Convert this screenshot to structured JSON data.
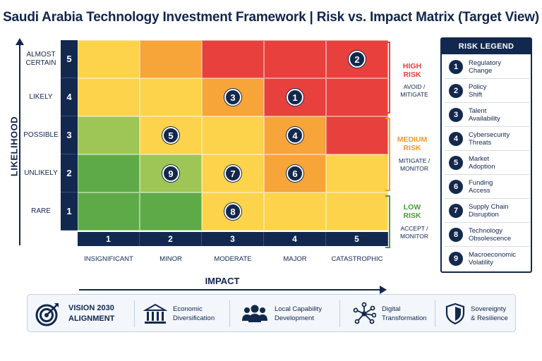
{
  "title": "Saudi Arabia Technology Investment Framework | Risk vs. Impact Matrix (Target View)",
  "y_axis": {
    "title": "LIKELIHOOD",
    "rows": [
      {
        "num": "5",
        "label": "ALMOST\nCERTAIN"
      },
      {
        "num": "4",
        "label": "LIKELY"
      },
      {
        "num": "3",
        "label": "POSSIBLE"
      },
      {
        "num": "2",
        "label": "UNLIKELY"
      },
      {
        "num": "1",
        "label": "RARE"
      }
    ]
  },
  "x_axis": {
    "title": "IMPACT",
    "cols": [
      {
        "num": "1",
        "label": "INSIGNIFICANT"
      },
      {
        "num": "2",
        "label": "MINOR"
      },
      {
        "num": "3",
        "label": "MODERATE"
      },
      {
        "num": "4",
        "label": "MAJOR"
      },
      {
        "num": "5",
        "label": "CATASTROPHIC"
      }
    ]
  },
  "colors": {
    "dark_green": "#5faa48",
    "light_green": "#9ec657",
    "yellow": "#fcd34a",
    "orange": "#f7a438",
    "red": "#e8403c",
    "navy": "#12284e"
  },
  "cell_colors": [
    [
      "yellow",
      "orange",
      "red",
      "red",
      "red"
    ],
    [
      "yellow",
      "yellow",
      "orange",
      "red",
      "red"
    ],
    [
      "light_green",
      "yellow",
      "yellow",
      "orange",
      "red"
    ],
    [
      "dark_green",
      "light_green",
      "yellow",
      "orange",
      "yellow"
    ],
    [
      "dark_green",
      "dark_green",
      "yellow",
      "yellow",
      "yellow"
    ]
  ],
  "risk_markers": [
    {
      "id": "1",
      "likelihood": 4,
      "impact": 4
    },
    {
      "id": "2",
      "likelihood": 5,
      "impact": 5
    },
    {
      "id": "3",
      "likelihood": 4,
      "impact": 3
    },
    {
      "id": "4",
      "likelihood": 3,
      "impact": 4
    },
    {
      "id": "5",
      "likelihood": 3,
      "impact": 2
    },
    {
      "id": "6",
      "likelihood": 2,
      "impact": 4
    },
    {
      "id": "7",
      "likelihood": 2,
      "impact": 3
    },
    {
      "id": "8",
      "likelihood": 1,
      "impact": 3
    },
    {
      "id": "9",
      "likelihood": 2,
      "impact": 2
    }
  ],
  "risk_bands": [
    {
      "title": "HIGH\nRISK",
      "action": "AVOID /\nMITIGATE",
      "color": "#e8403c"
    },
    {
      "title": "MEDIUM\nRISK",
      "action": "MITIGATE /\nMONITOR",
      "color": "#f39a2a"
    },
    {
      "title": "LOW\nRISK",
      "action": "ACCEPT /\nMONITOR",
      "color": "#4c9a3c"
    }
  ],
  "legend": {
    "title": "RISK LEGEND",
    "items": [
      {
        "num": "1",
        "label": "Regulatory\nChange"
      },
      {
        "num": "2",
        "label": "Policy\nShift"
      },
      {
        "num": "3",
        "label": "Talent\nAvailability"
      },
      {
        "num": "4",
        "label": "Cybersecurity\nThreats"
      },
      {
        "num": "5",
        "label": "Market\nAdoption"
      },
      {
        "num": "6",
        "label": "Funding\nAccess"
      },
      {
        "num": "7",
        "label": "Supply Chain\nDisruption"
      },
      {
        "num": "8",
        "label": "Technology\nObsolescence"
      },
      {
        "num": "9",
        "label": "Macroeconomic\nVolatility"
      }
    ]
  },
  "vision": {
    "heading": "VISION 2030\nALIGNMENT",
    "heading_icon": "target-icon",
    "items": [
      {
        "icon": "building-icon",
        "label": "Economic\nDiversification"
      },
      {
        "icon": "people-icon",
        "label": "Local Capability\nDevelopment"
      },
      {
        "icon": "circuit-icon",
        "label": "Digital\nTransformation"
      },
      {
        "icon": "shield-icon",
        "label": "Sovereignty\n& Resilience"
      }
    ]
  }
}
